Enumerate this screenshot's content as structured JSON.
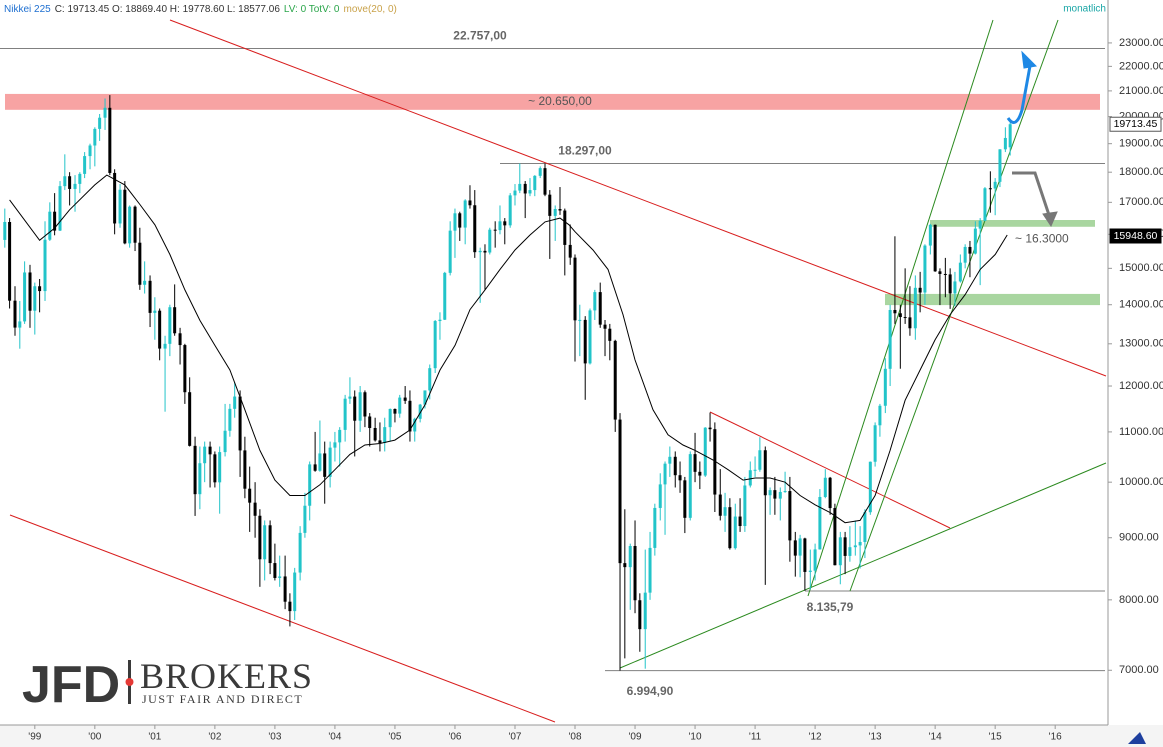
{
  "chart_data": {
    "type": "candlestick",
    "header": {
      "symbol": "Nikkei 225",
      "ohlc": "C: 19713.45  O: 18869.40  H: 19778.60  L: 18577.06",
      "volume": "LV: 0  TotV: 0",
      "indicator": "move(20, 0)"
    },
    "period": "monatlich",
    "up_color": "#22c4c9",
    "down_color": "#000000",
    "log_scale": true,
    "ylim": [
      6310,
      24950
    ],
    "yticks": [
      {
        "value": 7000,
        "label": "7000.00"
      },
      {
        "value": 8000,
        "label": "8000.00"
      },
      {
        "value": 9000,
        "label": "9000.00"
      },
      {
        "value": 10000,
        "label": "10000.00"
      },
      {
        "value": 11000,
        "label": "11000.00"
      },
      {
        "value": 12000,
        "label": "12000.00"
      },
      {
        "value": 13000,
        "label": "13000.00"
      },
      {
        "value": 14000,
        "label": "14000.00"
      },
      {
        "value": 15000,
        "label": "15000.00"
      },
      {
        "value": 16000,
        "label": "16000.00"
      },
      {
        "value": 17000,
        "label": "17000.00"
      },
      {
        "value": 18000,
        "label": "18000.00"
      },
      {
        "value": 19000,
        "label": "19000.00"
      },
      {
        "value": 20000,
        "label": "20000.00"
      },
      {
        "value": 21000,
        "label": "21000.00"
      },
      {
        "value": 22000,
        "label": "22000.00"
      },
      {
        "value": 23000,
        "label": "23000.00"
      }
    ],
    "xlim": [
      1998.42,
      2016.88
    ],
    "xticks": [
      {
        "value": 1999,
        "label": "'99"
      },
      {
        "value": 2000,
        "label": "'00"
      },
      {
        "value": 2001,
        "label": "'01"
      },
      {
        "value": 2002,
        "label": "'02"
      },
      {
        "value": 2003,
        "label": "'03"
      },
      {
        "value": 2004,
        "label": "'04"
      },
      {
        "value": 2005,
        "label": "'05"
      },
      {
        "value": 2006,
        "label": "'06"
      },
      {
        "value": 2007,
        "label": "'07"
      },
      {
        "value": 2008,
        "label": "'08"
      },
      {
        "value": 2009,
        "label": "'09"
      },
      {
        "value": 2010,
        "label": "'10"
      },
      {
        "value": 2011,
        "label": "'11"
      },
      {
        "value": 2012,
        "label": "'12"
      },
      {
        "value": 2013,
        "label": "'13"
      },
      {
        "value": 2014,
        "label": "'14"
      },
      {
        "value": 2015,
        "label": "'15"
      },
      {
        "value": 2016,
        "label": "'16"
      }
    ],
    "x": [
      1998.5,
      1998.58,
      1998.67,
      1998.75,
      1998.83,
      1998.92,
      1999,
      1999.08,
      1999.17,
      1999.25,
      1999.33,
      1999.42,
      1999.5,
      1999.58,
      1999.67,
      1999.75,
      1999.83,
      1999.92,
      2000,
      2000.08,
      2000.17,
      2000.25,
      2000.33,
      2000.42,
      2000.5,
      2000.58,
      2000.67,
      2000.75,
      2000.83,
      2000.92,
      2001,
      2001.08,
      2001.17,
      2001.25,
      2001.33,
      2001.42,
      2001.5,
      2001.58,
      2001.67,
      2001.75,
      2001.83,
      2001.92,
      2002,
      2002.08,
      2002.17,
      2002.25,
      2002.33,
      2002.42,
      2002.5,
      2002.58,
      2002.67,
      2002.75,
      2002.83,
      2002.92,
      2003,
      2003.08,
      2003.17,
      2003.25,
      2003.33,
      2003.42,
      2003.5,
      2003.58,
      2003.67,
      2003.75,
      2003.83,
      2003.92,
      2004,
      2004.08,
      2004.17,
      2004.25,
      2004.33,
      2004.42,
      2004.5,
      2004.58,
      2004.67,
      2004.75,
      2004.83,
      2004.92,
      2005,
      2005.08,
      2005.17,
      2005.25,
      2005.33,
      2005.42,
      2005.5,
      2005.58,
      2005.67,
      2005.75,
      2005.83,
      2005.92,
      2006,
      2006.08,
      2006.17,
      2006.25,
      2006.33,
      2006.42,
      2006.5,
      2006.58,
      2006.67,
      2006.75,
      2006.83,
      2006.92,
      2007,
      2007.08,
      2007.17,
      2007.25,
      2007.33,
      2007.42,
      2007.5,
      2007.58,
      2007.67,
      2007.75,
      2007.83,
      2007.92,
      2008,
      2008.08,
      2008.17,
      2008.25,
      2008.33,
      2008.42,
      2008.5,
      2008.58,
      2008.67,
      2008.75,
      2008.83,
      2008.92,
      2009,
      2009.08,
      2009.17,
      2009.25,
      2009.33,
      2009.42,
      2009.5,
      2009.58,
      2009.67,
      2009.75,
      2009.83,
      2009.92,
      2010,
      2010.08,
      2010.17,
      2010.25,
      2010.33,
      2010.42,
      2010.5,
      2010.58,
      2010.67,
      2010.75,
      2010.83,
      2010.92,
      2011,
      2011.08,
      2011.17,
      2011.25,
      2011.33,
      2011.42,
      2011.5,
      2011.58,
      2011.67,
      2011.75,
      2011.83,
      2011.92,
      2012,
      2012.08,
      2012.17,
      2012.25,
      2012.33,
      2012.42,
      2012.5,
      2012.58,
      2012.67,
      2012.75,
      2012.83,
      2012.92,
      2013,
      2013.08,
      2013.17,
      2013.25,
      2013.33,
      2013.42,
      2013.5,
      2013.58,
      2013.67,
      2013.75,
      2013.83,
      2013.92,
      2014,
      2014.08,
      2014.17,
      2014.25,
      2014.33,
      2014.42,
      2014.5,
      2014.58,
      2014.67,
      2014.75,
      2014.83,
      2014.92,
      2015,
      2015.08,
      2015.17,
      2015.25
    ],
    "open": [
      15830,
      16378,
      14108,
      13406,
      13564,
      14883,
      13842,
      14499,
      14367,
      15837,
      16701,
      16112,
      17530,
      17862,
      17437,
      17605,
      17942,
      18558,
      18934,
      19540,
      19959,
      20337,
      17974,
      16332,
      17411,
      15727,
      16861,
      15747,
      14540,
      14649,
      13785,
      13843,
      12883,
      12999,
      13934,
      13262,
      12969,
      11860,
      10713,
      9775,
      10366,
      10697,
      10542,
      9997,
      10587,
      11024,
      11492,
      11763,
      10621,
      9877,
      9619,
      9383,
      8640,
      9215,
      8578,
      8339,
      8363,
      7972,
      7831,
      8425,
      9083,
      9563,
      10343,
      10219,
      10560,
      10101,
      10677,
      10784,
      11042,
      11715,
      11762,
      11236,
      11859,
      11326,
      11082,
      10824,
      10771,
      11100,
      11489,
      11388,
      11740,
      11668,
      11009,
      11277,
      11584,
      11900,
      12413,
      13574,
      13607,
      14872,
      16111,
      16650,
      16205,
      17060,
      16906,
      15467,
      15505,
      15457,
      16141,
      16128,
      16399,
      16274,
      17226,
      17383,
      17604,
      17288,
      17400,
      17876,
      18138,
      17249,
      16569,
      16786,
      16738,
      15681,
      15308,
      13592,
      13603,
      12526,
      13850,
      14339,
      13481,
      13377,
      13073,
      11260,
      8577,
      8512,
      8860,
      7994,
      7568,
      8110,
      8828,
      9523,
      9958,
      10357,
      10493,
      10133,
      10035,
      9346,
      10546,
      10198,
      10126,
      11089,
      11057,
      9768,
      9383,
      9537,
      8824,
      9369,
      9202,
      9937,
      10229,
      10238,
      10624,
      9755,
      9850,
      9693,
      9816,
      9833,
      8955,
      8700,
      8988,
      8435,
      8455,
      8803,
      9723,
      10084,
      9521,
      8543,
      9007,
      8695,
      8840,
      8870,
      8928,
      9446,
      10395,
      11139,
      11559,
      12398,
      13861,
      13775,
      13677,
      13668,
      13389,
      14456,
      14328,
      15662,
      16291,
      14915,
      14841,
      14828,
      14304,
      14632,
      15162,
      15621,
      15425,
      16174,
      16414,
      17460,
      17451,
      17674,
      18798,
      18869.4
    ],
    "high": [
      16800,
      16500,
      14500,
      14100,
      15200,
      15100,
      14600,
      14700,
      16400,
      17000,
      17300,
      17700,
      18620,
      18000,
      17900,
      18000,
      18700,
      19000,
      19600,
      20100,
      20700,
      20833,
      18100,
      17600,
      17700,
      16900,
      16900,
      16200,
      15200,
      14800,
      14200,
      13900,
      13200,
      14000,
      14550,
      13400,
      13000,
      12200,
      10900,
      10700,
      10800,
      10800,
      10600,
      10700,
      11600,
      11600,
      12080,
      11900,
      10900,
      10300,
      10000,
      9500,
      9300,
      9300,
      8900,
      8700,
      8700,
      8100,
      8500,
      9200,
      9800,
      10400,
      11000,
      11240,
      10800,
      10800,
      11000,
      11100,
      11800,
      12200,
      11900,
      12000,
      11900,
      11400,
      11300,
      11200,
      11300,
      11500,
      11500,
      11800,
      12000,
      11900,
      11300,
      11600,
      11900,
      12500,
      13600,
      13800,
      14900,
      16400,
      16800,
      16700,
      17100,
      17560,
      17400,
      15600,
      15700,
      16200,
      16400,
      16900,
      16500,
      17300,
      17600,
      18300,
      17700,
      17800,
      17900,
      18200,
      18297,
      17400,
      16900,
      17500,
      16800,
      16300,
      15400,
      14000,
      13700,
      13900,
      14400,
      14600,
      13600,
      13500,
      13100,
      11400,
      9500,
      8900,
      9300,
      8100,
      8800,
      9100,
      9600,
      10170,
      10400,
      10700,
      10600,
      10400,
      10100,
      10600,
      10980,
      10400,
      11100,
      11410,
      11200,
      10250,
      9800,
      9700,
      9600,
      9700,
      10100,
      10400,
      10500,
      10890,
      10700,
      9900,
      10100,
      9900,
      10200,
      10100,
      9100,
      9050,
      9000,
      8800,
      8900,
      9870,
      10250,
      10100,
      9600,
      9100,
      9100,
      9200,
      9300,
      9200,
      9500,
      10400,
      11200,
      11600,
      12650,
      14000,
      15940,
      14000,
      15000,
      14500,
      14800,
      14900,
      15700,
      16320,
      16300,
      15000,
      15300,
      15000,
      14900,
      15400,
      15700,
      15800,
      16400,
      16500,
      17500,
      18030,
      17800,
      18800,
      19600,
      19778.6
    ],
    "low": [
      15600,
      13900,
      13200,
      12880,
      13500,
      13400,
      13230,
      13800,
      14100,
      15800,
      15970,
      16100,
      17400,
      16900,
      16700,
      17300,
      17800,
      18100,
      18200,
      19100,
      19500,
      17900,
      16000,
      16200,
      15700,
      15600,
      15500,
      14400,
      14300,
      13420,
      13100,
      12600,
      11430,
      12700,
      13200,
      12500,
      11600,
      10700,
      9380,
      9500,
      10000,
      9900,
      9900,
      9420,
      10500,
      10900,
      11300,
      10100,
      9700,
      9100,
      9000,
      8200,
      8300,
      8400,
      8300,
      8200,
      7860,
      7607,
      7700,
      8300,
      9000,
      9300,
      10200,
      10200,
      9600,
      9900,
      10400,
      10300,
      10800,
      11600,
      10500,
      11000,
      11100,
      10700,
      10800,
      10600,
      10600,
      10800,
      11200,
      11300,
      11600,
      10800,
      10800,
      11200,
      11500,
      11700,
      12300,
      13100,
      13600,
      14800,
      15300,
      15800,
      15700,
      16800,
      15300,
      14050,
      14400,
      15400,
      15600,
      16000,
      15700,
      16200,
      16900,
      17300,
      16500,
      17200,
      17200,
      17800,
      17200,
      15270,
      15800,
      16600,
      14800,
      15100,
      12570,
      12700,
      11690,
      12500,
      13600,
      13400,
      12700,
      12600,
      11000,
      6994.9,
      7160,
      7850,
      7800,
      7250,
      7021,
      8000,
      8700,
      9300,
      9050,
      10100,
      9900,
      9800,
      9080,
      9300,
      10000,
      9870,
      10100,
      10800,
      9450,
      9300,
      9100,
      8800,
      8800,
      9100,
      9100,
      9900,
      10100,
      10200,
      8230,
      9400,
      9400,
      9300,
      9800,
      8600,
      8360,
      8350,
      8140,
      8160,
      8300,
      8800,
      9700,
      9400,
      8540,
      8240,
      8400,
      8600,
      8700,
      8490,
      8660,
      9400,
      10300,
      10900,
      11400,
      12000,
      13500,
      12400,
      13500,
      13200,
      13100,
      13800,
      14000,
      15400,
      14900,
      13990,
      14200,
      13890,
      13960,
      14600,
      15000,
      14750,
      15400,
      14530,
      16400,
      16670,
      16590,
      17500,
      18700,
      18577.06
    ],
    "close": [
      16378,
      14108,
      13406,
      13564,
      14883,
      13842,
      14499,
      14367,
      15837,
      16701,
      16112,
      17530,
      17862,
      17437,
      17605,
      17942,
      18558,
      18934,
      19540,
      19959,
      20337,
      17974,
      16332,
      17411,
      15727,
      16861,
      15747,
      14540,
      14649,
      13785,
      13843,
      12883,
      12999,
      13934,
      13262,
      12969,
      11860,
      10713,
      9775,
      10366,
      10697,
      10542,
      9997,
      10587,
      11024,
      11492,
      11763,
      10621,
      9877,
      9619,
      9383,
      8640,
      9215,
      8578,
      8339,
      8363,
      7972,
      7831,
      8425,
      9083,
      9563,
      10343,
      10219,
      10560,
      10101,
      10677,
      10784,
      11042,
      11715,
      11762,
      11236,
      11859,
      11326,
      11082,
      10824,
      10771,
      11100,
      11489,
      11388,
      11740,
      11668,
      11009,
      11277,
      11584,
      11900,
      12413,
      13574,
      13607,
      14872,
      16111,
      16650,
      16205,
      17060,
      16906,
      15467,
      15505,
      15457,
      16141,
      16128,
      16399,
      16274,
      17226,
      17383,
      17604,
      17288,
      17400,
      17876,
      18138,
      17249,
      16569,
      16786,
      16738,
      15681,
      15308,
      13592,
      13603,
      12526,
      13850,
      14339,
      13481,
      13377,
      13073,
      11260,
      8577,
      8512,
      8860,
      7994,
      7568,
      8110,
      8828,
      9523,
      9958,
      10357,
      10493,
      10133,
      10035,
      9346,
      10546,
      10198,
      10126,
      11089,
      11057,
      9768,
      9383,
      9537,
      8824,
      9369,
      9202,
      9937,
      10229,
      10238,
      10624,
      9755,
      9850,
      9693,
      9816,
      9833,
      8955,
      8700,
      8988,
      8435,
      8455,
      8803,
      9723,
      10084,
      9521,
      8543,
      9007,
      8695,
      8840,
      8870,
      8928,
      9446,
      10395,
      11139,
      11559,
      12398,
      13861,
      13775,
      13677,
      13668,
      13389,
      14456,
      14328,
      15662,
      16291,
      14915,
      14841,
      14828,
      14304,
      14632,
      15162,
      15621,
      15425,
      16174,
      16414,
      17460,
      17451,
      17674,
      18798,
      19207,
      19713.45
    ],
    "ma": {
      "color": "#000000",
      "x": [
        1998.58,
        1999.08,
        1999.33,
        1999.58,
        2000,
        2000.2,
        2000.5,
        2000.75,
        2001,
        2001.25,
        2001.5,
        2001.75,
        2002,
        2002.25,
        2002.5,
        2002.75,
        2003,
        2003.25,
        2003.5,
        2003.75,
        2004,
        2004.25,
        2004.5,
        2004.75,
        2005,
        2005.25,
        2005.5,
        2005.75,
        2006,
        2006.25,
        2006.5,
        2006.75,
        2007,
        2007.25,
        2007.5,
        2007.75,
        2007.9,
        2008,
        2008.3,
        2008.55,
        2008.8,
        2009,
        2009.3,
        2009.55,
        2009.8,
        2010,
        2010.3,
        2010.55,
        2010.8,
        2011,
        2011.25,
        2011.5,
        2011.75,
        2012,
        2012.25,
        2012.5,
        2012.75,
        2013,
        2013.25,
        2013.5,
        2013.75,
        2014,
        2014.25,
        2014.5,
        2014.75,
        2015,
        2015.2
      ],
      "values": [
        17080,
        15820,
        16190,
        16760,
        17570,
        17900,
        17570,
        16930,
        16290,
        15400,
        14400,
        13590,
        12960,
        12370,
        11470,
        10620,
        10040,
        9750,
        9750,
        9950,
        10240,
        10540,
        10730,
        10760,
        10830,
        11040,
        11580,
        12370,
        12960,
        13870,
        14400,
        14970,
        15530,
        15980,
        16380,
        16500,
        16290,
        16080,
        15530,
        14970,
        13740,
        12610,
        11470,
        10940,
        10730,
        10620,
        10430,
        10240,
        10040,
        10080,
        10080,
        10000,
        9750,
        9580,
        9440,
        9260,
        9300,
        9750,
        10620,
        11680,
        12370,
        13100,
        13740,
        14270,
        14970,
        15400,
        15980
      ]
    },
    "levels": [
      {
        "value": 22757,
        "label": "22.757,00",
        "color": "#808080"
      },
      {
        "value": 18297,
        "label": "18.297,00",
        "color": "#808080"
      },
      {
        "value": 8135.79,
        "label": "8.135,79",
        "color": "#808080"
      },
      {
        "value": 6994.9,
        "label": "6.994,90",
        "color": "#808080"
      }
    ],
    "zones": [
      {
        "from": 20260,
        "to": 20880,
        "label": "~ 20.650,00",
        "color": "#f7a3a3"
      },
      {
        "from": 16230,
        "to": 16440,
        "label": "~ 16.3000",
        "color": "#a9d6a0"
      },
      {
        "from": 13990,
        "to": 14290,
        "color": "#a9d6a0"
      }
    ],
    "price_tags": [
      {
        "value": 19713.45,
        "label": "19713.45"
      },
      {
        "value": 15948.6,
        "label": "15948.60"
      }
    ]
  },
  "logo": {
    "name": "JFD",
    "brand": "BROKERS",
    "slogan": "JUST FAIR AND DIRECT"
  }
}
